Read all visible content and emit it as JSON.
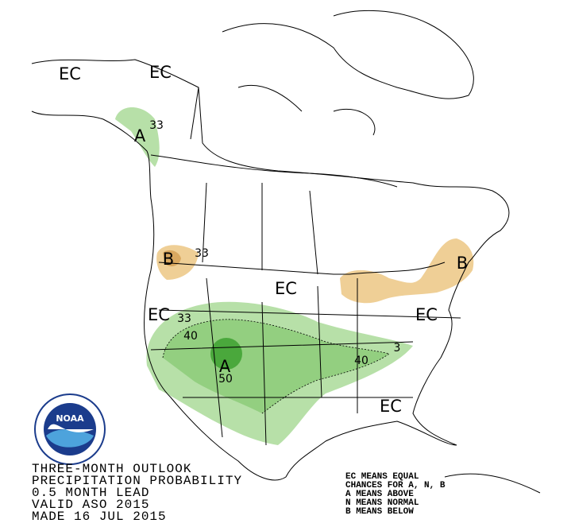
{
  "map": {
    "labels": [
      "EC",
      "EC",
      "A",
      "33",
      "B",
      "33",
      "EC",
      "EC",
      "33",
      "40",
      "A",
      "50",
      "40",
      "3",
      "EC",
      "B",
      "EC"
    ],
    "logo": "NOAA",
    "footer": [
      "THREE-MONTH OUTLOOK",
      "PRECIPITATION PROBABILITY",
      "0.5 MONTH LEAD",
      "VALID ASO 2015",
      "MADE 16 JUL 2015"
    ],
    "legend": [
      "EC MEANS EQUAL",
      "CHANCES FOR A, N, B",
      "A MEANS ABOVE",
      "N MEANS NORMAL",
      "B MEANS BELOW"
    ]
  }
}
